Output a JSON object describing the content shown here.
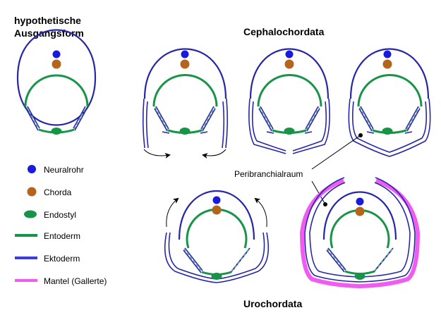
{
  "titles": {
    "hypothetical_line1": "hypothetische",
    "hypothetical_line2": "Ausgangsform",
    "cephalochordata": "Cephalochordata",
    "urochordata": "Urochordata"
  },
  "legend": {
    "neuralrohr": "Neuralrohr",
    "chorda": "Chorda",
    "endostyl": "Endostyl",
    "entoderm": "Entoderm",
    "ektoderm": "Ektoderm",
    "mantel": "Mantel (Gallerte)"
  },
  "labels": {
    "peribranchialraum": "Peribranchialraum"
  },
  "colors": {
    "neuralrohr": "#1a1adf",
    "chorda": "#b5641c",
    "endostyl": "#179447",
    "entoderm": "#179447",
    "ektoderm": "#2626a8",
    "mantel": "#f05cf0",
    "stripe": "#6aa5a5"
  }
}
